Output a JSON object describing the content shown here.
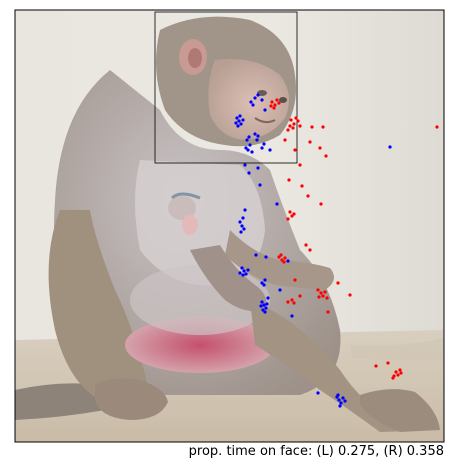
{
  "caption": "prop. time on face: (L) 0.275, (R) 0.358",
  "legend_colors": {
    "left": "#0000ff",
    "right": "#ff0000"
  },
  "proportions": {
    "left": 0.275,
    "right": 0.358
  },
  "image_subject": "macaque-monkey-photo"
}
